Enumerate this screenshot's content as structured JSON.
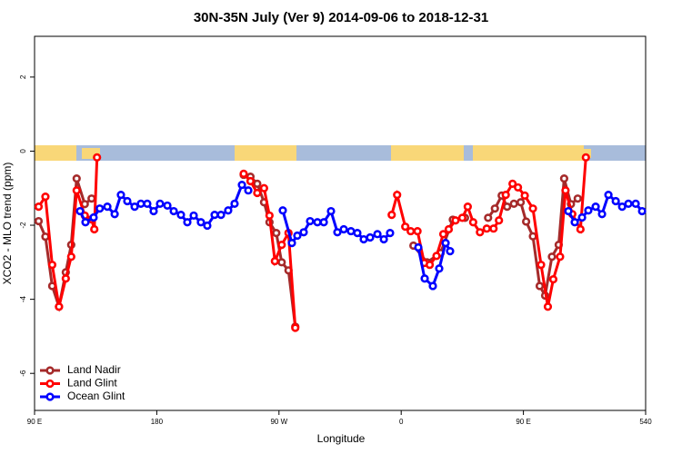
{
  "chart_data": {
    "type": "line",
    "title": "30N-35N July (Ver 9)   2014-09-06 to 2018-12-31",
    "x_label": "Longitude",
    "y_label": "XCO2 - MLO trend (ppm)",
    "xlim": [
      90,
      540
    ],
    "xticks": [
      {
        "value": 90,
        "label": "90 E"
      },
      180,
      {
        "value": 270,
        "label": "90 W"
      },
      {
        "value": 360,
        "label": "0"
      },
      {
        "value": 450,
        "label": "90 E"
      },
      540
    ],
    "ylim": [
      -7,
      3.1
    ],
    "yticks": [
      -6,
      -4,
      -2,
      0,
      2
    ],
    "legend": "bottom-left",
    "series": [
      {
        "name": "Land Nadir",
        "color": "#a52a2a",
        "x": [
          93,
          98,
          103,
          108,
          113,
          117,
          121,
          127,
          132,
          null,
          244,
          249,
          254,
          259,
          263,
          268,
          272,
          277,
          282,
          null,
          369,
          379,
          389,
          398,
          407,
          null,
          424,
          429,
          434,
          438,
          443,
          448,
          452,
          457,
          462,
          466,
          471,
          476,
          480,
          485,
          490
        ],
        "values": [
          -1.89,
          -2.31,
          -3.64,
          -4.2,
          -3.27,
          -2.53,
          -0.74,
          -1.43,
          -1.28,
          null,
          -0.64,
          -0.69,
          -0.88,
          -1.38,
          -1.92,
          -2.21,
          -3.0,
          -3.22,
          -4.74,
          null,
          -2.55,
          -3.0,
          -2.75,
          -1.85,
          -1.8,
          null,
          -1.8,
          -1.55,
          -1.2,
          -1.5,
          -1.42,
          -1.38,
          -1.9,
          -2.3,
          -3.64,
          -3.9,
          -2.85,
          -2.53,
          -0.74,
          -1.43,
          -1.28
        ]
      },
      {
        "name": "Land Glint",
        "color": "#ff0000",
        "x": [
          93,
          98,
          103,
          108,
          113,
          117,
          121,
          127,
          132,
          134,
          136,
          null,
          244,
          249,
          254,
          259,
          263,
          267,
          272,
          277,
          282,
          null,
          353,
          357,
          363,
          367,
          372,
          377,
          381,
          386,
          391,
          395,
          400,
          405,
          409,
          413,
          418,
          423,
          428,
          432,
          437,
          442,
          446,
          451,
          457,
          463,
          468,
          472,
          477,
          481,
          486,
          492,
          496
        ],
        "values": [
          -1.5,
          -1.23,
          -3.07,
          -4.2,
          -3.44,
          -2.85,
          -1.06,
          -1.74,
          -1.84,
          -2.11,
          -0.17,
          null,
          -0.61,
          -0.81,
          -1.13,
          -1.0,
          -1.74,
          -2.97,
          -2.53,
          -2.21,
          -4.77,
          null,
          -1.72,
          -1.18,
          -2.04,
          -2.16,
          -2.16,
          -3.02,
          -3.07,
          -2.83,
          -2.24,
          -2.11,
          -1.87,
          -1.8,
          -1.5,
          -1.92,
          -2.19,
          -2.09,
          -2.09,
          -1.87,
          -1.18,
          -0.88,
          -0.98,
          -1.2,
          -1.55,
          -3.07,
          -4.2,
          -3.46,
          -2.85,
          -1.06,
          -1.7,
          -2.11,
          -0.17
        ]
      },
      {
        "name": "Ocean Glint",
        "color": "#0000ff",
        "x": [
          123.5,
          127.5,
          133.5,
          138,
          143.6,
          149,
          153.6,
          158.3,
          163.7,
          168.3,
          173,
          177.7,
          182.4,
          187.8,
          192.5,
          197.8,
          202.5,
          207.2,
          212.5,
          217.2,
          222.6,
          227.3,
          232.6,
          237.3,
          242.7,
          247.4,
          null,
          272.8,
          279.5,
          283.5,
          288.2,
          292.9,
          298.3,
          303,
          308.3,
          313,
          317.7,
          323,
          327.7,
          332.4,
          337.1,
          342.5,
          347.2,
          351.8,
          null,
          372.6,
          377.3,
          383.3,
          388,
          392.7,
          396,
          null,
          483.1,
          487.8,
          493.2,
          497.8,
          503.2,
          507.9,
          512.6,
          518,
          522.7,
          527.3,
          532.7,
          537.4
        ],
        "values": [
          -1.62,
          -1.92,
          -1.79,
          -1.55,
          -1.5,
          -1.7,
          -1.18,
          -1.35,
          -1.5,
          -1.42,
          -1.42,
          -1.62,
          -1.42,
          -1.47,
          -1.62,
          -1.72,
          -1.92,
          -1.74,
          -1.92,
          -2.01,
          -1.72,
          -1.72,
          -1.6,
          -1.42,
          -0.91,
          -1.06,
          null,
          -1.6,
          -2.48,
          -2.28,
          -2.19,
          -1.89,
          -1.92,
          -1.92,
          -1.62,
          -2.19,
          -2.11,
          -2.16,
          -2.21,
          -2.38,
          -2.33,
          -2.24,
          -2.38,
          -2.21,
          null,
          -2.6,
          -3.44,
          -3.64,
          -3.17,
          -2.48,
          -2.7,
          null,
          -1.62,
          -1.92,
          -1.79,
          -1.6,
          -1.5,
          -1.7,
          -1.18,
          -1.35,
          -1.5,
          -1.42,
          -1.42,
          -1.62
        ]
      }
    ]
  }
}
